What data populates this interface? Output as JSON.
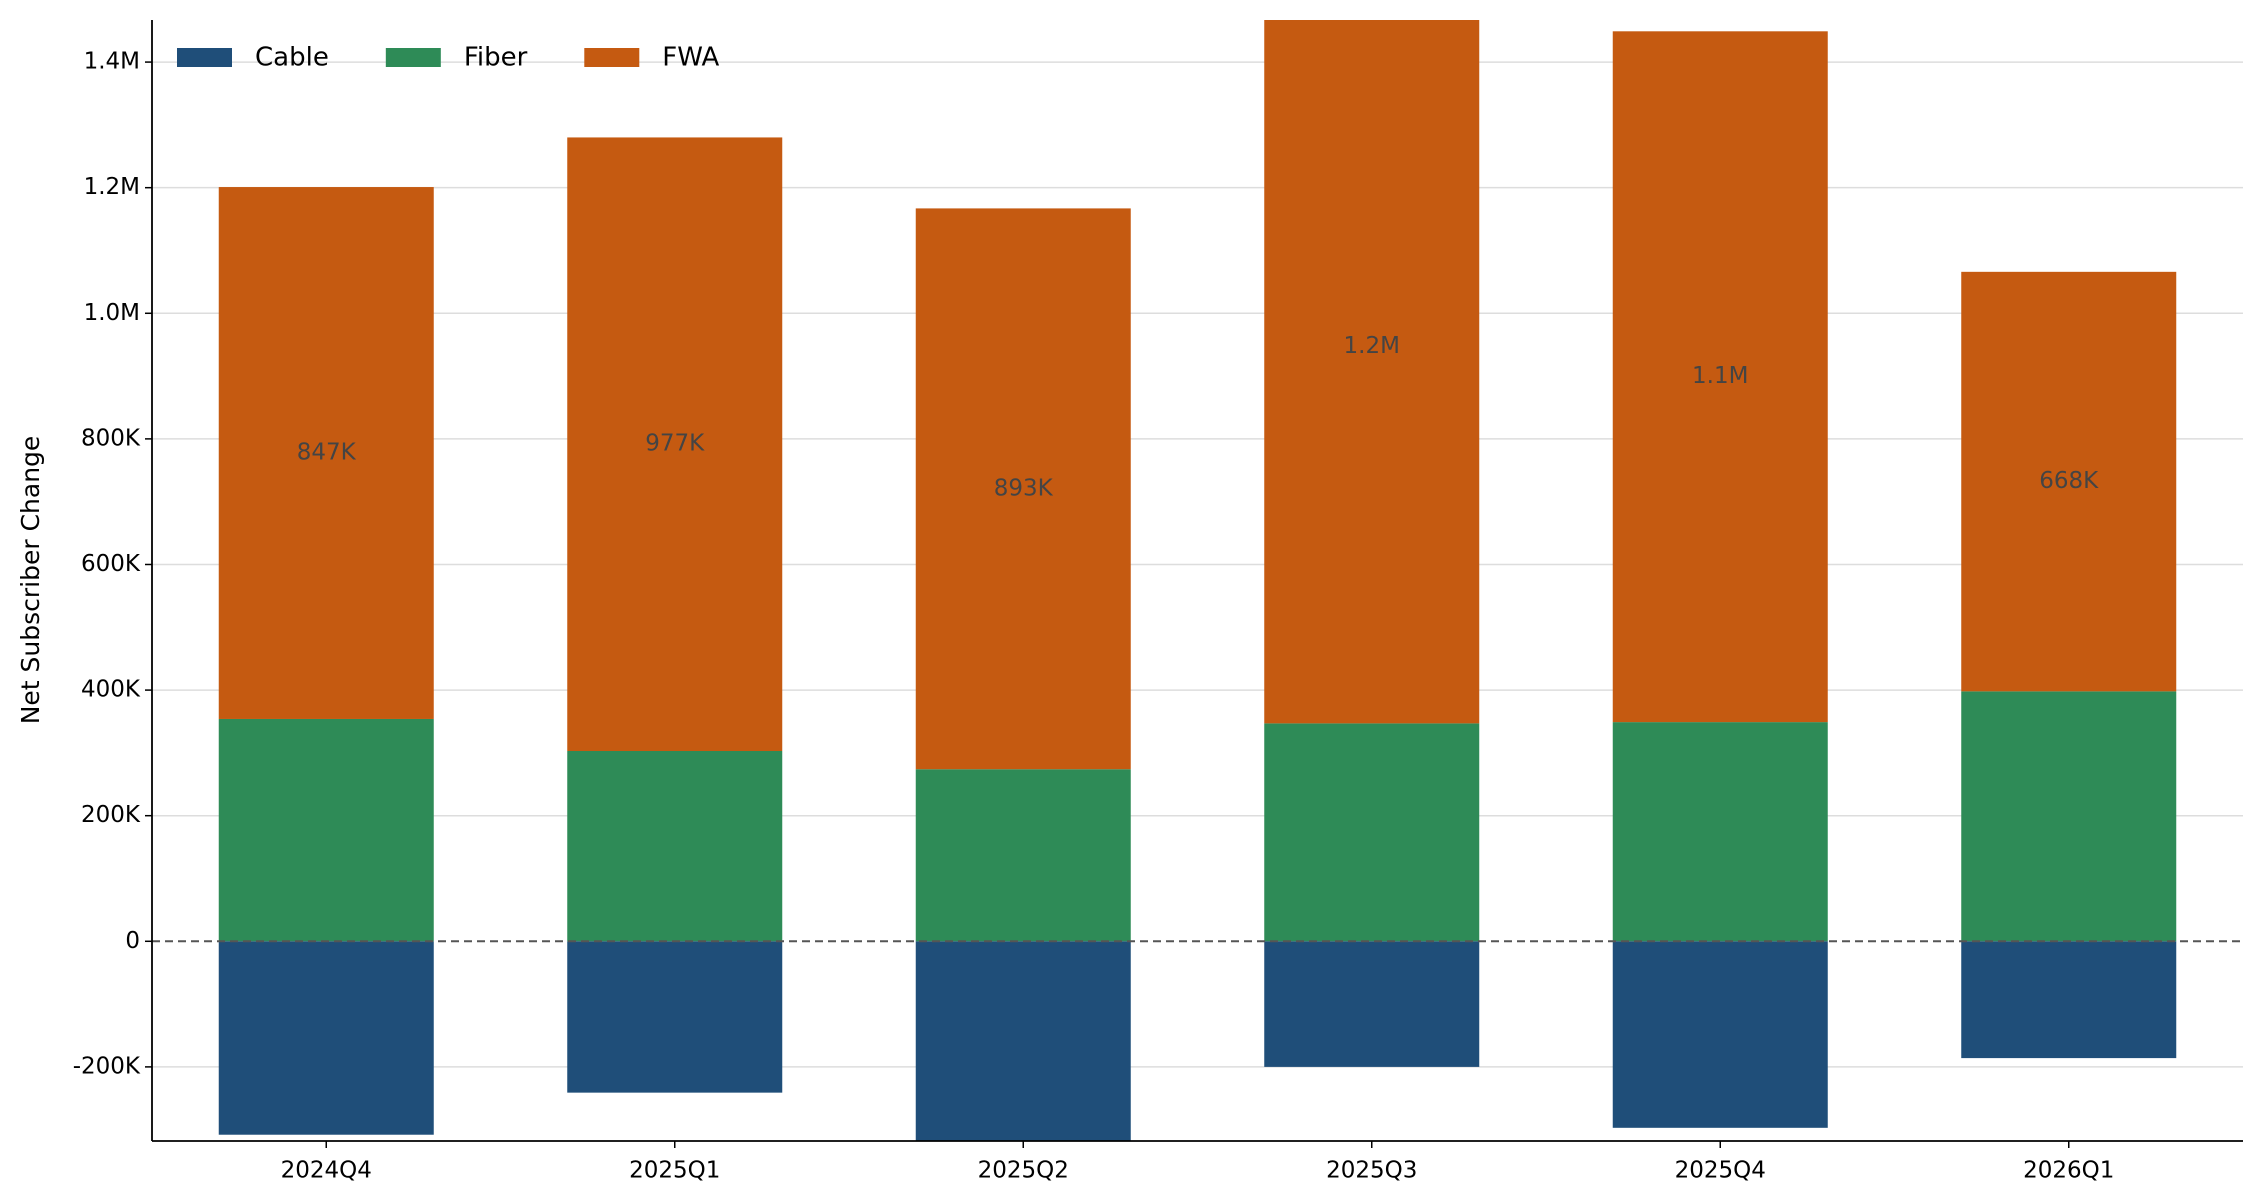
{
  "chart_data": {
    "type": "stacked-bar",
    "y_label": "Net Subscriber Change",
    "categories": [
      "2024Q4",
      "2025Q1",
      "2025Q2",
      "2025Q3",
      "2025Q4",
      "2026Q1"
    ],
    "series": [
      {
        "name": "Cable",
        "color": "#1f4e79",
        "values": [
          -308000,
          -241000,
          -318000,
          -200000,
          -297000,
          -186000
        ]
      },
      {
        "name": "Fiber",
        "color": "#2e8b57",
        "values": [
          354000,
          303000,
          274000,
          347000,
          349000,
          398000
        ]
      },
      {
        "name": "FWA",
        "color": "#c55a11",
        "values": [
          847000,
          977000,
          893000,
          1200000,
          1100000,
          668000
        ],
        "value_labels": [
          "847K",
          "977K",
          "893K",
          "1.2M",
          "1.1M",
          "668K"
        ]
      }
    ],
    "ylim": [
      -318000,
      1467000
    ],
    "yticks": [
      {
        "value": -200000,
        "label": "-200K"
      },
      0,
      {
        "value": 200000,
        "label": "200K"
      },
      {
        "value": 400000,
        "label": "400K"
      },
      {
        "value": 600000,
        "label": "600K"
      },
      {
        "value": 800000,
        "label": "800K"
      },
      {
        "value": 1000000,
        "label": "1.0M"
      },
      {
        "value": 1200000,
        "label": "1.2M"
      },
      {
        "value": 1400000,
        "label": "1.4M"
      }
    ],
    "grid": true,
    "legend": "upper-left"
  }
}
